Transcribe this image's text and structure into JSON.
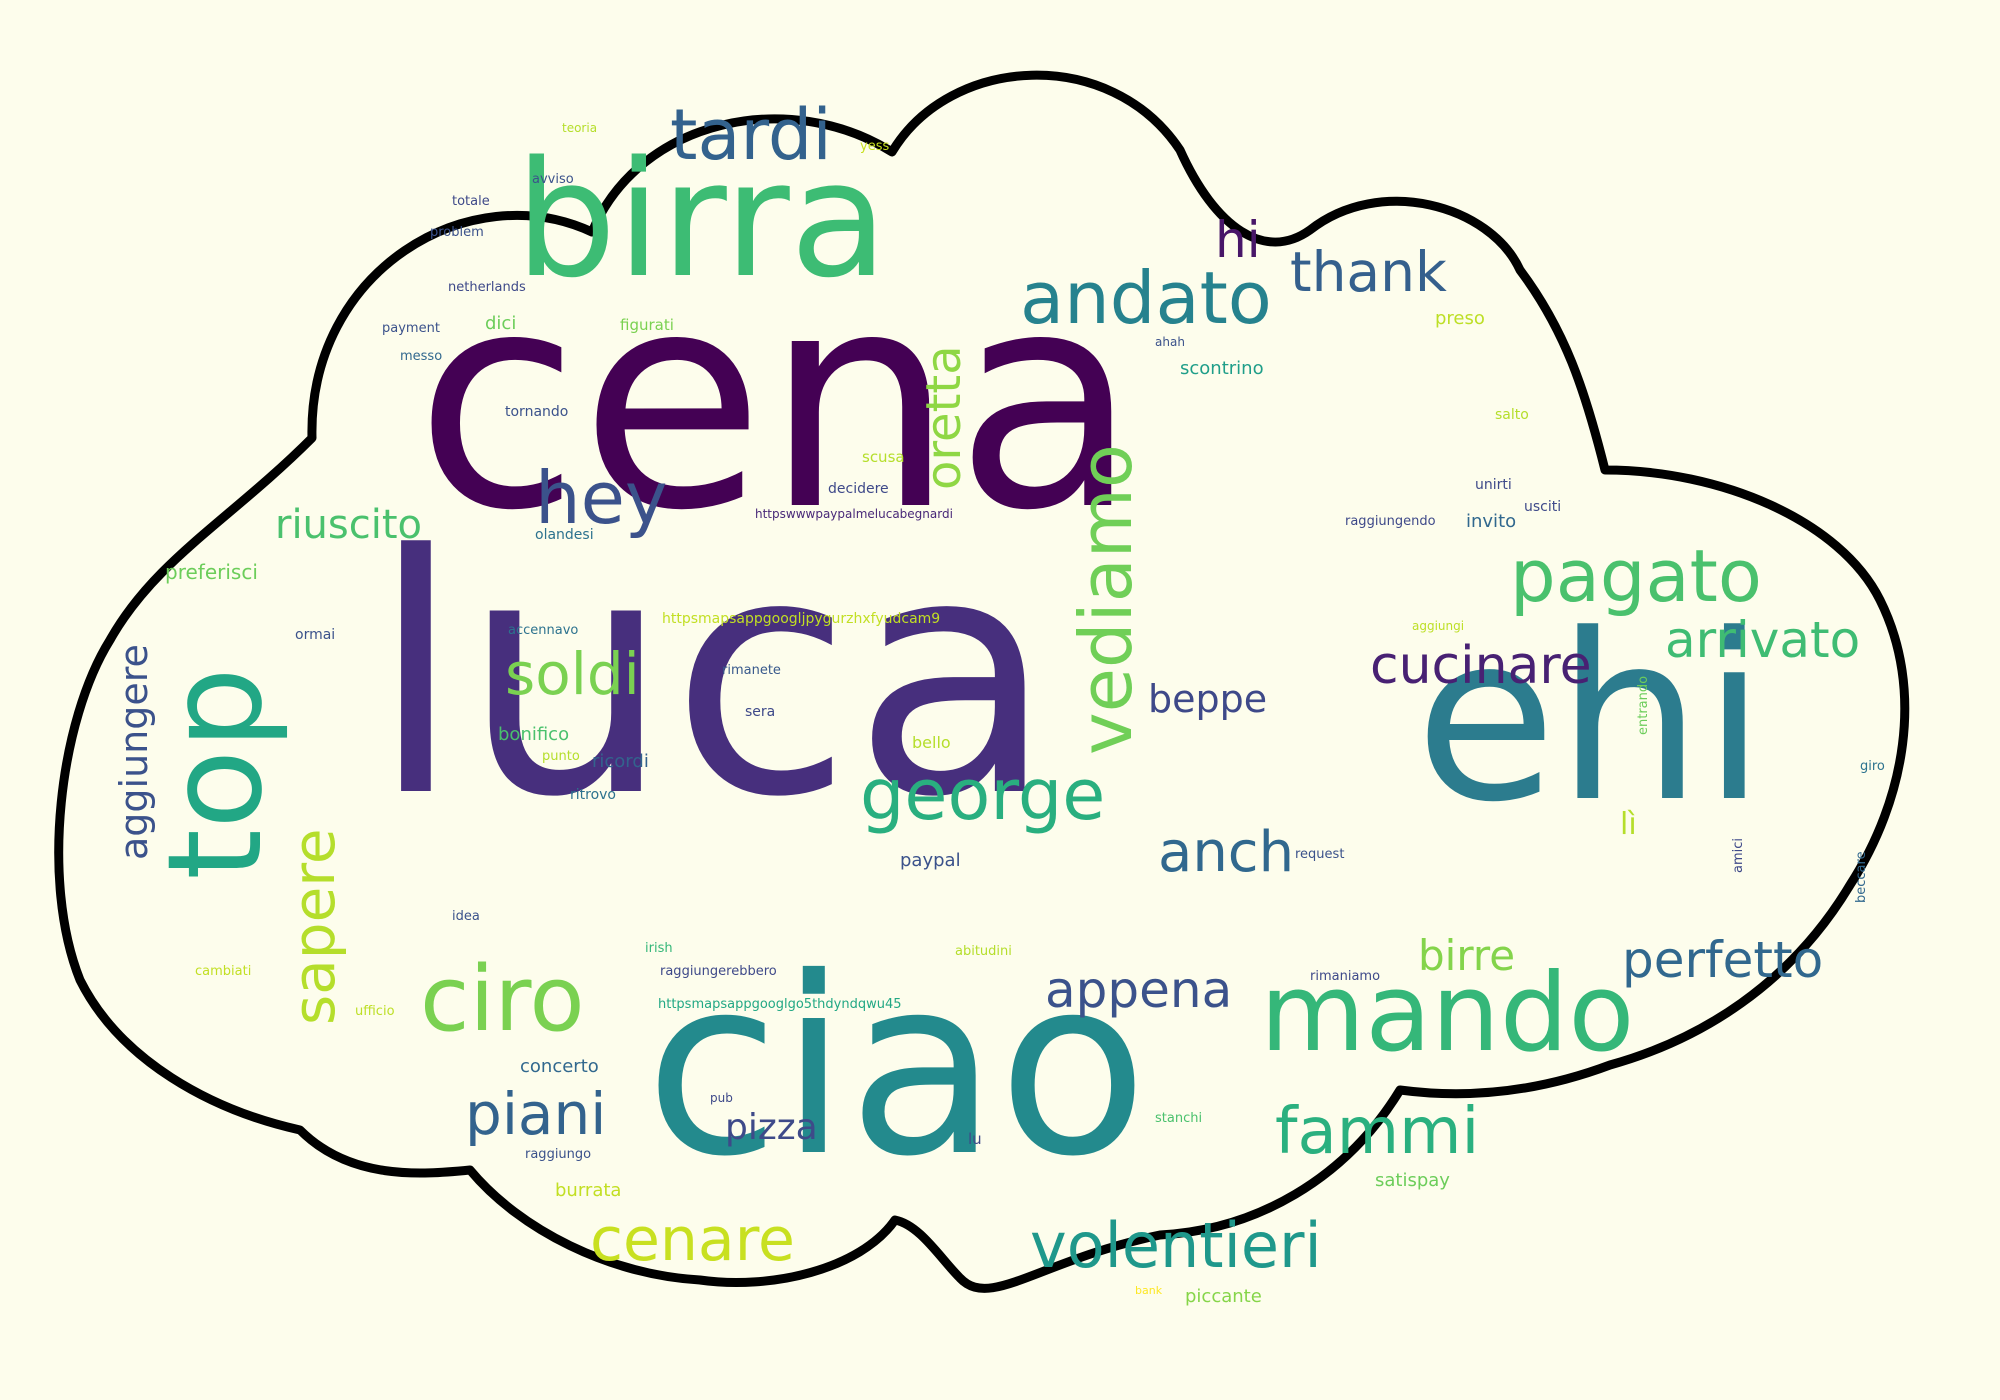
{
  "colors": {
    "background": "#fdfdec",
    "cloud_fill": "#fdfdec",
    "cloud_outline": "#000000"
  },
  "words": [
    {
      "key": "cena",
      "text": "cena",
      "color": "#440154"
    },
    {
      "key": "luca",
      "text": "luca",
      "color": "#472f7d"
    },
    {
      "key": "ehi",
      "text": "ehi",
      "color": "#2c7c8e"
    },
    {
      "key": "ciao",
      "text": "ciao",
      "color": "#238a8d"
    },
    {
      "key": "birra",
      "text": "birra",
      "color": "#3dbc74"
    },
    {
      "key": "top",
      "text": "top",
      "color": "#22a785"
    },
    {
      "key": "mando",
      "text": "mando",
      "color": "#35b779"
    },
    {
      "key": "tardi",
      "text": "tardi",
      "color": "#33628d"
    },
    {
      "key": "andato",
      "text": "andato",
      "color": "#26828e"
    },
    {
      "key": "thank",
      "text": "thank",
      "color": "#35608d"
    },
    {
      "key": "hi",
      "text": "hi",
      "color": "#481668"
    },
    {
      "key": "oretta",
      "text": "oretta",
      "color": "#8fd744"
    },
    {
      "key": "vediamo",
      "text": "vediamo",
      "color": "#70cf57"
    },
    {
      "key": "hey",
      "text": "hey",
      "color": "#3b528b"
    },
    {
      "key": "riuscito",
      "text": "riuscito",
      "color": "#4ac16d"
    },
    {
      "key": "pagato",
      "text": "pagato",
      "color": "#4ac16d"
    },
    {
      "key": "arrivato",
      "text": "arrivato",
      "color": "#3fbc73"
    },
    {
      "key": "cucinare",
      "text": "cucinare",
      "color": "#482173"
    },
    {
      "key": "soldi",
      "text": "soldi",
      "color": "#7ad151"
    },
    {
      "key": "beppe",
      "text": "beppe",
      "color": "#3e4989"
    },
    {
      "key": "george",
      "text": "george",
      "color": "#29af7f"
    },
    {
      "key": "anch",
      "text": "anch",
      "color": "#31688e"
    },
    {
      "key": "aggiungere",
      "text": "aggiungere",
      "color": "#3b528b"
    },
    {
      "key": "sapere",
      "text": "sapere",
      "color": "#b5de2b"
    },
    {
      "key": "ciro",
      "text": "ciro",
      "color": "#7ad151"
    },
    {
      "key": "appena",
      "text": "appena",
      "color": "#3b528b"
    },
    {
      "key": "birre",
      "text": "birre",
      "color": "#84d44b"
    },
    {
      "key": "perfetto",
      "text": "perfetto",
      "color": "#31688e"
    },
    {
      "key": "li",
      "text": "lì",
      "color": "#b5de2b"
    },
    {
      "key": "piani",
      "text": "piani",
      "color": "#33638d"
    },
    {
      "key": "pizza",
      "text": "pizza",
      "color": "#3e4a89"
    },
    {
      "key": "fammi",
      "text": "fammi",
      "color": "#2ab07f"
    },
    {
      "key": "cenare",
      "text": "cenare",
      "color": "#c8e020"
    },
    {
      "key": "volentieri",
      "text": "volentieri",
      "color": "#1f988b"
    },
    {
      "key": "dici",
      "text": "dici",
      "color": "#6ccd5a"
    },
    {
      "key": "figurati",
      "text": "figurati",
      "color": "#7ad151"
    },
    {
      "key": "scontrino",
      "text": "scontrino",
      "color": "#1f9e89"
    },
    {
      "key": "preso",
      "text": "preso",
      "color": "#bddf26"
    },
    {
      "key": "ahah",
      "text": "ahah",
      "color": "#3b528b"
    },
    {
      "key": "tornando",
      "text": "tornando",
      "color": "#3b528b"
    },
    {
      "key": "scusa",
      "text": "scusa",
      "color": "#b5de2b"
    },
    {
      "key": "decidere",
      "text": "decidere",
      "color": "#3e4989"
    },
    {
      "key": "paypal_link",
      "text": "httpswwwpaypalmelucabegnardi",
      "color": "#482878"
    },
    {
      "key": "olandesi",
      "text": "olandesi",
      "color": "#2c728e"
    },
    {
      "key": "salto",
      "text": "salto",
      "color": "#b5de2b"
    },
    {
      "key": "unirti",
      "text": "unirti",
      "color": "#3e4989"
    },
    {
      "key": "usciti",
      "text": "usciti",
      "color": "#3e4989"
    },
    {
      "key": "invito",
      "text": "invito",
      "color": "#31688e"
    },
    {
      "key": "raggiungendo",
      "text": "raggiungendo",
      "color": "#3e4989"
    },
    {
      "key": "preferisci",
      "text": "preferisci",
      "color": "#6ccd5a"
    },
    {
      "key": "maps_link1",
      "text": "httpsmapsappgoogljpygurzhxfyudcam9",
      "color": "#c2df23"
    },
    {
      "key": "accennavo",
      "text": "accennavo",
      "color": "#2c728e"
    },
    {
      "key": "aggiungi",
      "text": "aggiungi",
      "color": "#bddf26"
    },
    {
      "key": "ormai",
      "text": "ormai",
      "color": "#3b528b"
    },
    {
      "key": "rimanete",
      "text": "rimanete",
      "color": "#38598c"
    },
    {
      "key": "sera",
      "text": "sera",
      "color": "#3e4989"
    },
    {
      "key": "entrando",
      "text": "entrando",
      "color": "#6ccd5a"
    },
    {
      "key": "bonifico",
      "text": "bonifico",
      "color": "#4ac16d"
    },
    {
      "key": "bello",
      "text": "bello",
      "color": "#b5de2b"
    },
    {
      "key": "punto",
      "text": "punto",
      "color": "#b5de2b"
    },
    {
      "key": "ricordi",
      "text": "ricordi",
      "color": "#33638d"
    },
    {
      "key": "ritrovo",
      "text": "ritrovo",
      "color": "#2c728e"
    },
    {
      "key": "paypal",
      "text": "paypal",
      "color": "#3b528b"
    },
    {
      "key": "request",
      "text": "request",
      "color": "#3b528b"
    },
    {
      "key": "giro",
      "text": "giro",
      "color": "#2c728e"
    },
    {
      "key": "amici",
      "text": "amici",
      "color": "#3e4989"
    },
    {
      "key": "beccare",
      "text": "beccare",
      "color": "#31688e"
    },
    {
      "key": "idea",
      "text": "idea",
      "color": "#3b528b"
    },
    {
      "key": "irish",
      "text": "irish",
      "color": "#35b779"
    },
    {
      "key": "raggiungerebbero",
      "text": "raggiungerebbero",
      "color": "#3e4989"
    },
    {
      "key": "cambiati",
      "text": "cambiati",
      "color": "#c2df23"
    },
    {
      "key": "abitudini",
      "text": "abitudini",
      "color": "#b5de2b"
    },
    {
      "key": "rimaniamo",
      "text": "rimaniamo",
      "color": "#3e4989"
    },
    {
      "key": "maps_link2",
      "text": "httpsmapsappgooglgo5thdyndqwu45",
      "color": "#22a884"
    },
    {
      "key": "ufficio",
      "text": "ufficio",
      "color": "#bddf26"
    },
    {
      "key": "concerto",
      "text": "concerto",
      "color": "#31688e"
    },
    {
      "key": "pub",
      "text": "pub",
      "color": "#3e4989"
    },
    {
      "key": "stanchi",
      "text": "stanchi",
      "color": "#4ac16d"
    },
    {
      "key": "lu",
      "text": "lu",
      "color": "#3e4989"
    },
    {
      "key": "raggiungo",
      "text": "raggiungo",
      "color": "#3b528b"
    },
    {
      "key": "satispay",
      "text": "satispay",
      "color": "#6ccd5a"
    },
    {
      "key": "burrata",
      "text": "burrata",
      "color": "#c2df23"
    },
    {
      "key": "bank",
      "text": "bank",
      "color": "#fde725"
    },
    {
      "key": "piccante",
      "text": "piccante",
      "color": "#86d549"
    },
    {
      "key": "teoria",
      "text": "teoria",
      "color": "#b5de2b"
    },
    {
      "key": "yess",
      "text": "yess",
      "color": "#c8e020"
    },
    {
      "key": "avviso",
      "text": "avviso",
      "color": "#3b528b"
    },
    {
      "key": "totale",
      "text": "totale",
      "color": "#3e4989"
    },
    {
      "key": "problem",
      "text": "problem",
      "color": "#3b528b"
    },
    {
      "key": "netherlands",
      "text": "netherlands",
      "color": "#3e4989"
    },
    {
      "key": "payment",
      "text": "payment",
      "color": "#3b528b"
    },
    {
      "key": "messo",
      "text": "messo",
      "color": "#31688e"
    }
  ]
}
